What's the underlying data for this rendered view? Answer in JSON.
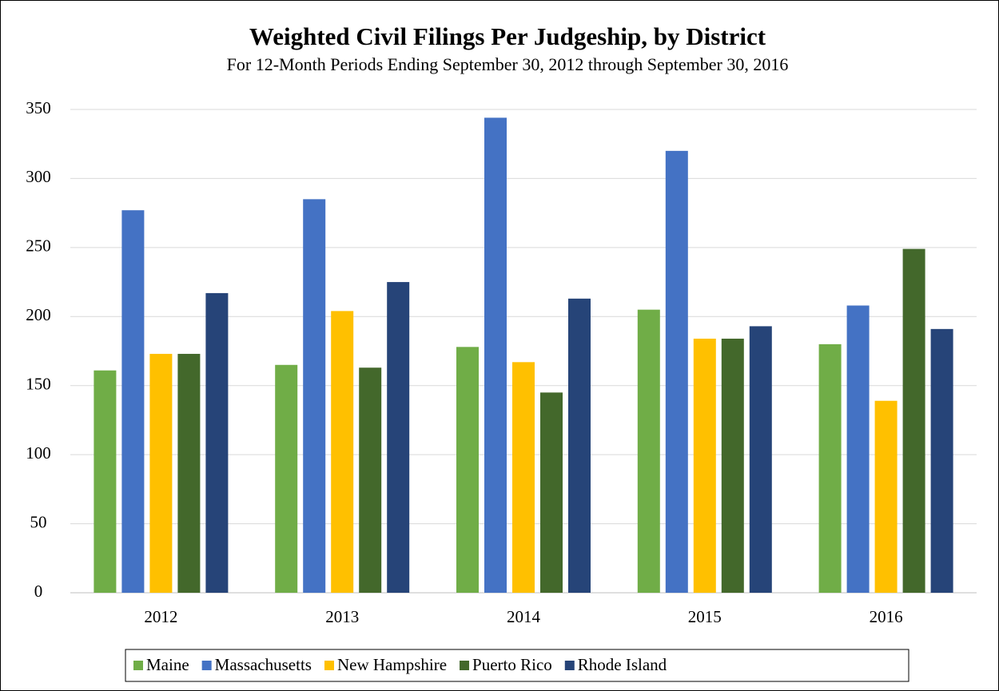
{
  "chart_data": {
    "type": "bar",
    "title": "Weighted Civil Filings Per Judgeship, by District",
    "subtitle": "For 12-Month Periods Ending September 30, 2012 through September 30, 2016",
    "categories": [
      "2012",
      "2013",
      "2014",
      "2015",
      "2016"
    ],
    "series": [
      {
        "name": "Maine",
        "color": "#70ad47",
        "values": [
          161,
          165,
          178,
          205,
          180
        ]
      },
      {
        "name": "Massachusetts",
        "color": "#4472c4",
        "values": [
          277,
          285,
          344,
          320,
          208
        ]
      },
      {
        "name": "New Hampshire",
        "color": "#ffc000",
        "values": [
          173,
          204,
          167,
          184,
          139
        ]
      },
      {
        "name": "Puerto Rico",
        "color": "#43682b",
        "values": [
          173,
          163,
          145,
          184,
          249
        ]
      },
      {
        "name": "Rhode Island",
        "color": "#264478",
        "values": [
          217,
          225,
          213,
          193,
          191
        ]
      }
    ],
    "ylim": [
      0,
      350
    ],
    "yticks": [
      0,
      50,
      100,
      150,
      200,
      250,
      300,
      350
    ],
    "grid": true,
    "legend": "bottom"
  }
}
